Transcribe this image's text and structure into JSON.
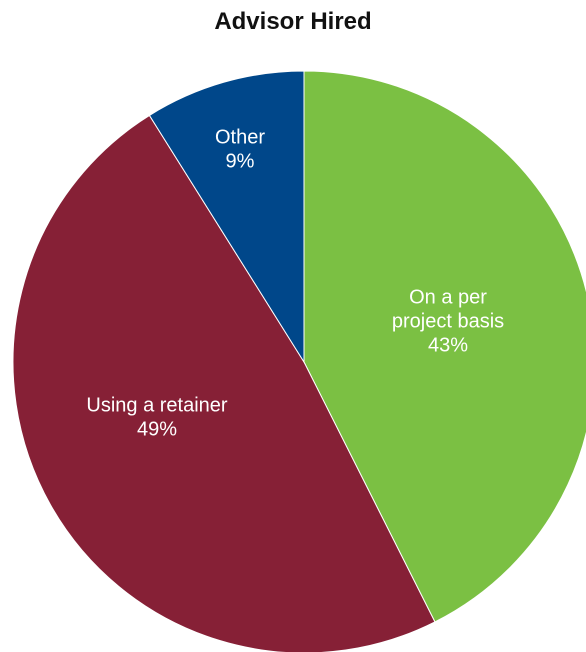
{
  "chart_data": {
    "type": "pie",
    "title": "Advisor Hired",
    "slices": [
      {
        "label": "On a per project basis",
        "label_lines": [
          "On a per",
          "project basis"
        ],
        "value_label": "43%",
        "value": 43,
        "color": "#7bc043"
      },
      {
        "label": "Using a retainer",
        "label_lines": [
          "Using a retainer"
        ],
        "value_label": "49%",
        "value": 49,
        "color": "#862036"
      },
      {
        "label": "Other",
        "label_lines": [
          "Other"
        ],
        "value_label": "9%",
        "value": 9,
        "color": "#00478a"
      }
    ],
    "start": "12 o'clock",
    "direction": "clockwise"
  }
}
